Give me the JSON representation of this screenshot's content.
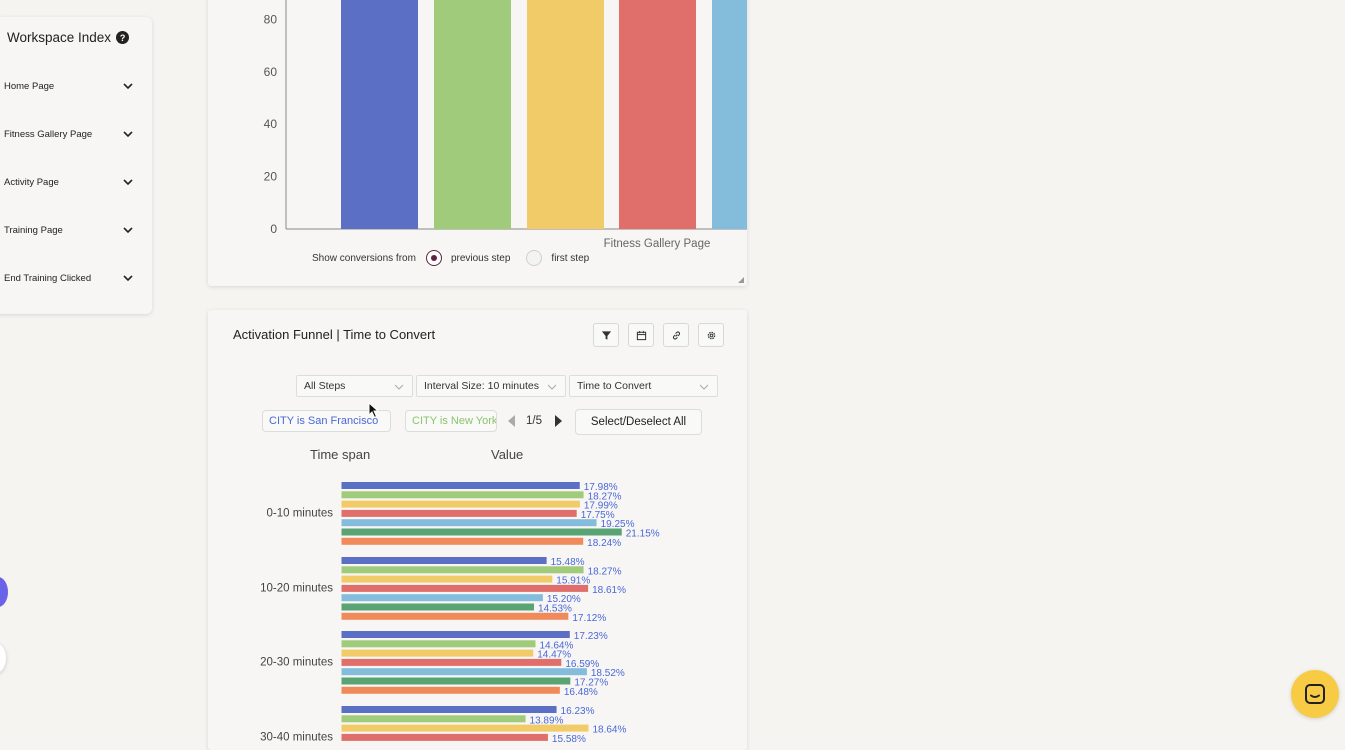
{
  "sidebar": {
    "title": "Workspace Index",
    "items": [
      {
        "label": "Home Page"
      },
      {
        "label": "Fitness Gallery Page"
      },
      {
        "label": "Activity Page"
      },
      {
        "label": "Training Page"
      },
      {
        "label": "End Training Clicked"
      }
    ]
  },
  "top_panel": {
    "conversions_label": "Show conversions from",
    "radio_previous": "previous step",
    "radio_first": "first step",
    "selected": "previous step"
  },
  "bottom_panel": {
    "title": "Activation Funnel | Time to Convert",
    "tools": [
      "filter-icon",
      "calendar-icon",
      "link-icon",
      "settings-icon"
    ],
    "select_steps": "All Steps",
    "select_interval": "Interval Size: 10 minutes",
    "select_metric": "Time to Convert",
    "chip_1": "CITY is San Francisco",
    "chip_2": "CITY is New York",
    "pager": "1/5",
    "select_all": "Select/Deselect All",
    "col_timespan": "Time span",
    "col_value": "Value"
  },
  "colors": {
    "blue": "#5b6fc4",
    "green": "#9fcb7b",
    "yellow": "#f2cb69",
    "red": "#e06f6b",
    "lightblue": "#84bcdc",
    "darkgreen": "#5aa473",
    "orange": "#f08a5a",
    "label": "#4a68d8",
    "accent": "#5e2440"
  },
  "chart_data": [
    {
      "type": "bar",
      "ylim": [
        0,
        100
      ],
      "yticks": [
        0,
        20,
        40,
        60,
        80
      ],
      "category_label": "Fitness Gallery Page",
      "values": [
        100,
        100,
        100,
        100,
        100
      ]
    },
    {
      "type": "bar",
      "orientation": "horizontal",
      "categories": [
        "0-10 minutes",
        "10-20 minutes",
        "20-30 minutes",
        "30-40 minutes"
      ],
      "series_values": [
        [
          17.98,
          18.27,
          17.99,
          17.75,
          19.25,
          21.15,
          18.24
        ],
        [
          15.48,
          18.27,
          15.91,
          18.61,
          15.2,
          14.53,
          17.12
        ],
        [
          17.23,
          14.64,
          14.47,
          16.59,
          18.52,
          17.27,
          16.48
        ],
        [
          16.23,
          13.89,
          18.64,
          15.58
        ]
      ],
      "labels": [
        [
          "17.98%",
          "18.27%",
          "17.99%",
          "17.75%",
          "19.25%",
          "21.15%",
          "18.24%"
        ],
        [
          "15.48%",
          "18.27%",
          "15.91%",
          "18.61%",
          "15.20%",
          "14.53%",
          "17.12%"
        ],
        [
          "17.23%",
          "14.64%",
          "14.47%",
          "16.59%",
          "18.52%",
          "17.27%",
          "16.48%"
        ],
        [
          "16.23%",
          "13.89%",
          "18.64%",
          "15.58%"
        ]
      ]
    }
  ]
}
